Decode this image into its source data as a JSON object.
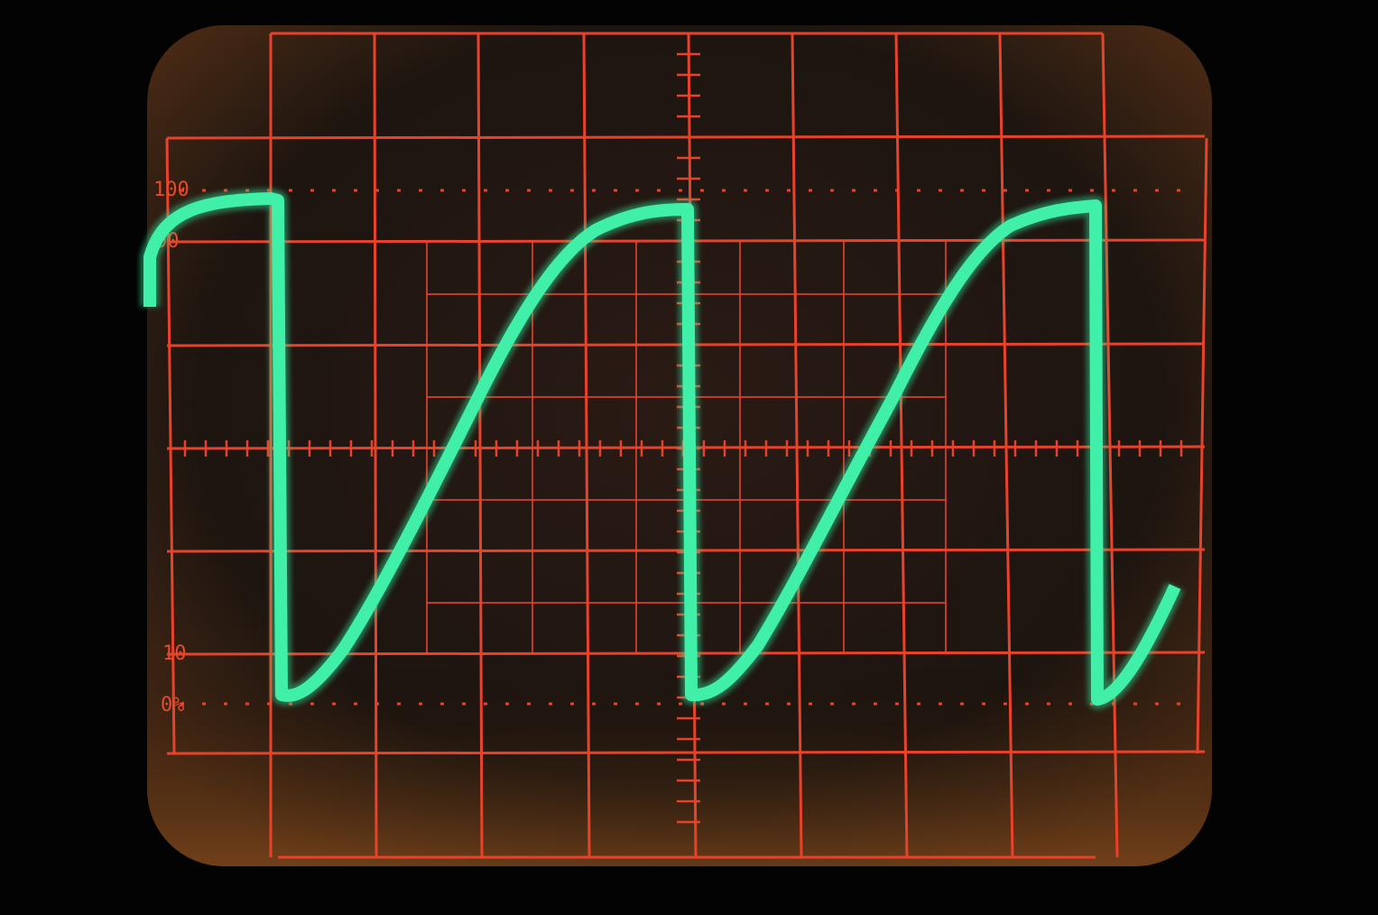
{
  "scale_labels": [
    "100",
    "90",
    "10",
    "0%"
  ]
}
